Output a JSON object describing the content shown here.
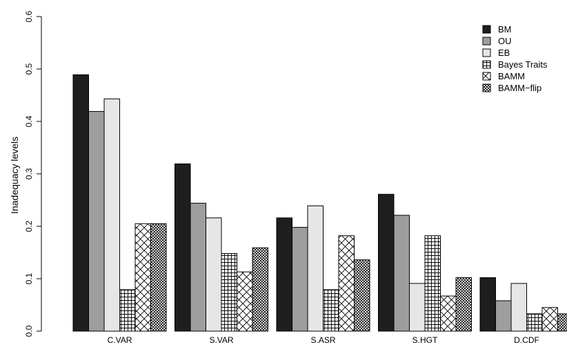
{
  "chart_data": {
    "type": "bar",
    "categories": [
      "C.VAR",
      "S.VAR",
      "S.ASR",
      "S.HGT",
      "D.CDF"
    ],
    "series": [
      {
        "name": "BM",
        "values": [
          0.489,
          0.319,
          0.216,
          0.261,
          0.102
        ],
        "fill": "#1e1e1e",
        "pattern": "solid"
      },
      {
        "name": "OU",
        "values": [
          0.419,
          0.244,
          0.198,
          0.221,
          0.058
        ],
        "fill": "#9e9e9e",
        "pattern": "solid"
      },
      {
        "name": "EB",
        "values": [
          0.443,
          0.216,
          0.239,
          0.091,
          0.091
        ],
        "fill": "#e6e6e6",
        "pattern": "solid"
      },
      {
        "name": "Bayes Traits",
        "values": [
          0.079,
          0.148,
          0.079,
          0.182,
          0.033
        ],
        "fill": "#ffffff",
        "pattern": "grid"
      },
      {
        "name": "BAMM",
        "values": [
          0.205,
          0.113,
          0.182,
          0.067,
          0.045
        ],
        "fill": "#ffffff",
        "pattern": "crosshatch"
      },
      {
        "name": "BAMM−flip",
        "values": [
          0.205,
          0.159,
          0.136,
          0.102,
          0.033
        ],
        "fill": "#ffffff",
        "pattern": "dense-crosshatch"
      }
    ],
    "ylabel": "Inadequacy levels",
    "xlabel": "",
    "ylim": [
      0,
      0.6
    ],
    "yticks": [
      "0.0",
      "0.1",
      "0.2",
      "0.3",
      "0.4",
      "0.5",
      "0.6"
    ],
    "grid": false,
    "legend_position": "top-right"
  }
}
